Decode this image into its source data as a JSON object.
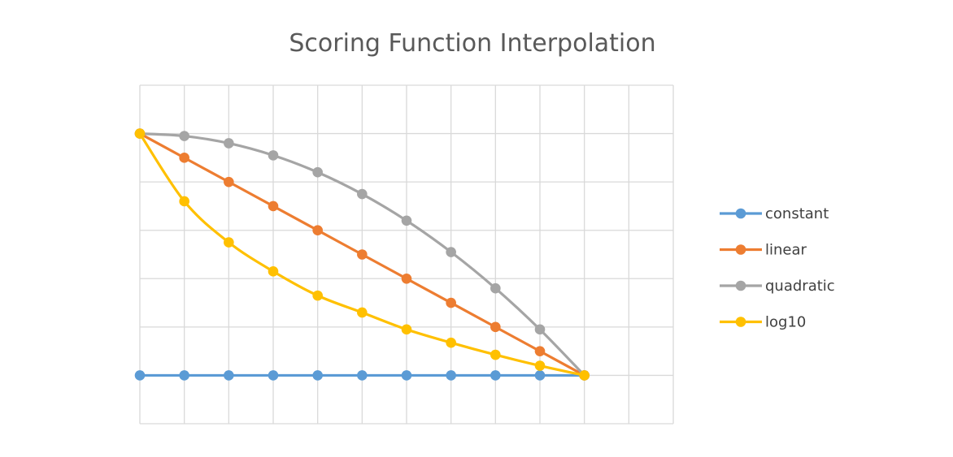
{
  "chart_data": {
    "type": "line",
    "title": "Scoring Function Interpolation",
    "xlabel": "",
    "ylabel": "",
    "x": [
      0,
      1,
      2,
      3,
      4,
      5,
      6,
      7,
      8,
      9,
      10
    ],
    "xlim": [
      0,
      12
    ],
    "ylim": [
      -0.2,
      1.2
    ],
    "grid": true,
    "legend_position": "right",
    "series": [
      {
        "name": "constant",
        "color": "#5B9BD5",
        "values": [
          0,
          0,
          0,
          0,
          0,
          0,
          0,
          0,
          0,
          0,
          0
        ]
      },
      {
        "name": "linear",
        "color": "#ED7D31",
        "values": [
          1,
          0.9,
          0.8,
          0.7,
          0.6,
          0.5,
          0.4,
          0.3,
          0.2,
          0.1,
          0
        ]
      },
      {
        "name": "quadratic",
        "color": "#A5A5A5",
        "values": [
          1,
          0.99,
          0.96,
          0.91,
          0.84,
          0.75,
          0.64,
          0.51,
          0.36,
          0.19,
          0
        ]
      },
      {
        "name": "log10",
        "color": "#FFC000",
        "values": [
          1,
          0.72,
          0.55,
          0.43,
          0.33,
          0.26,
          0.19,
          0.135,
          0.085,
          0.04,
          0
        ]
      }
    ]
  }
}
